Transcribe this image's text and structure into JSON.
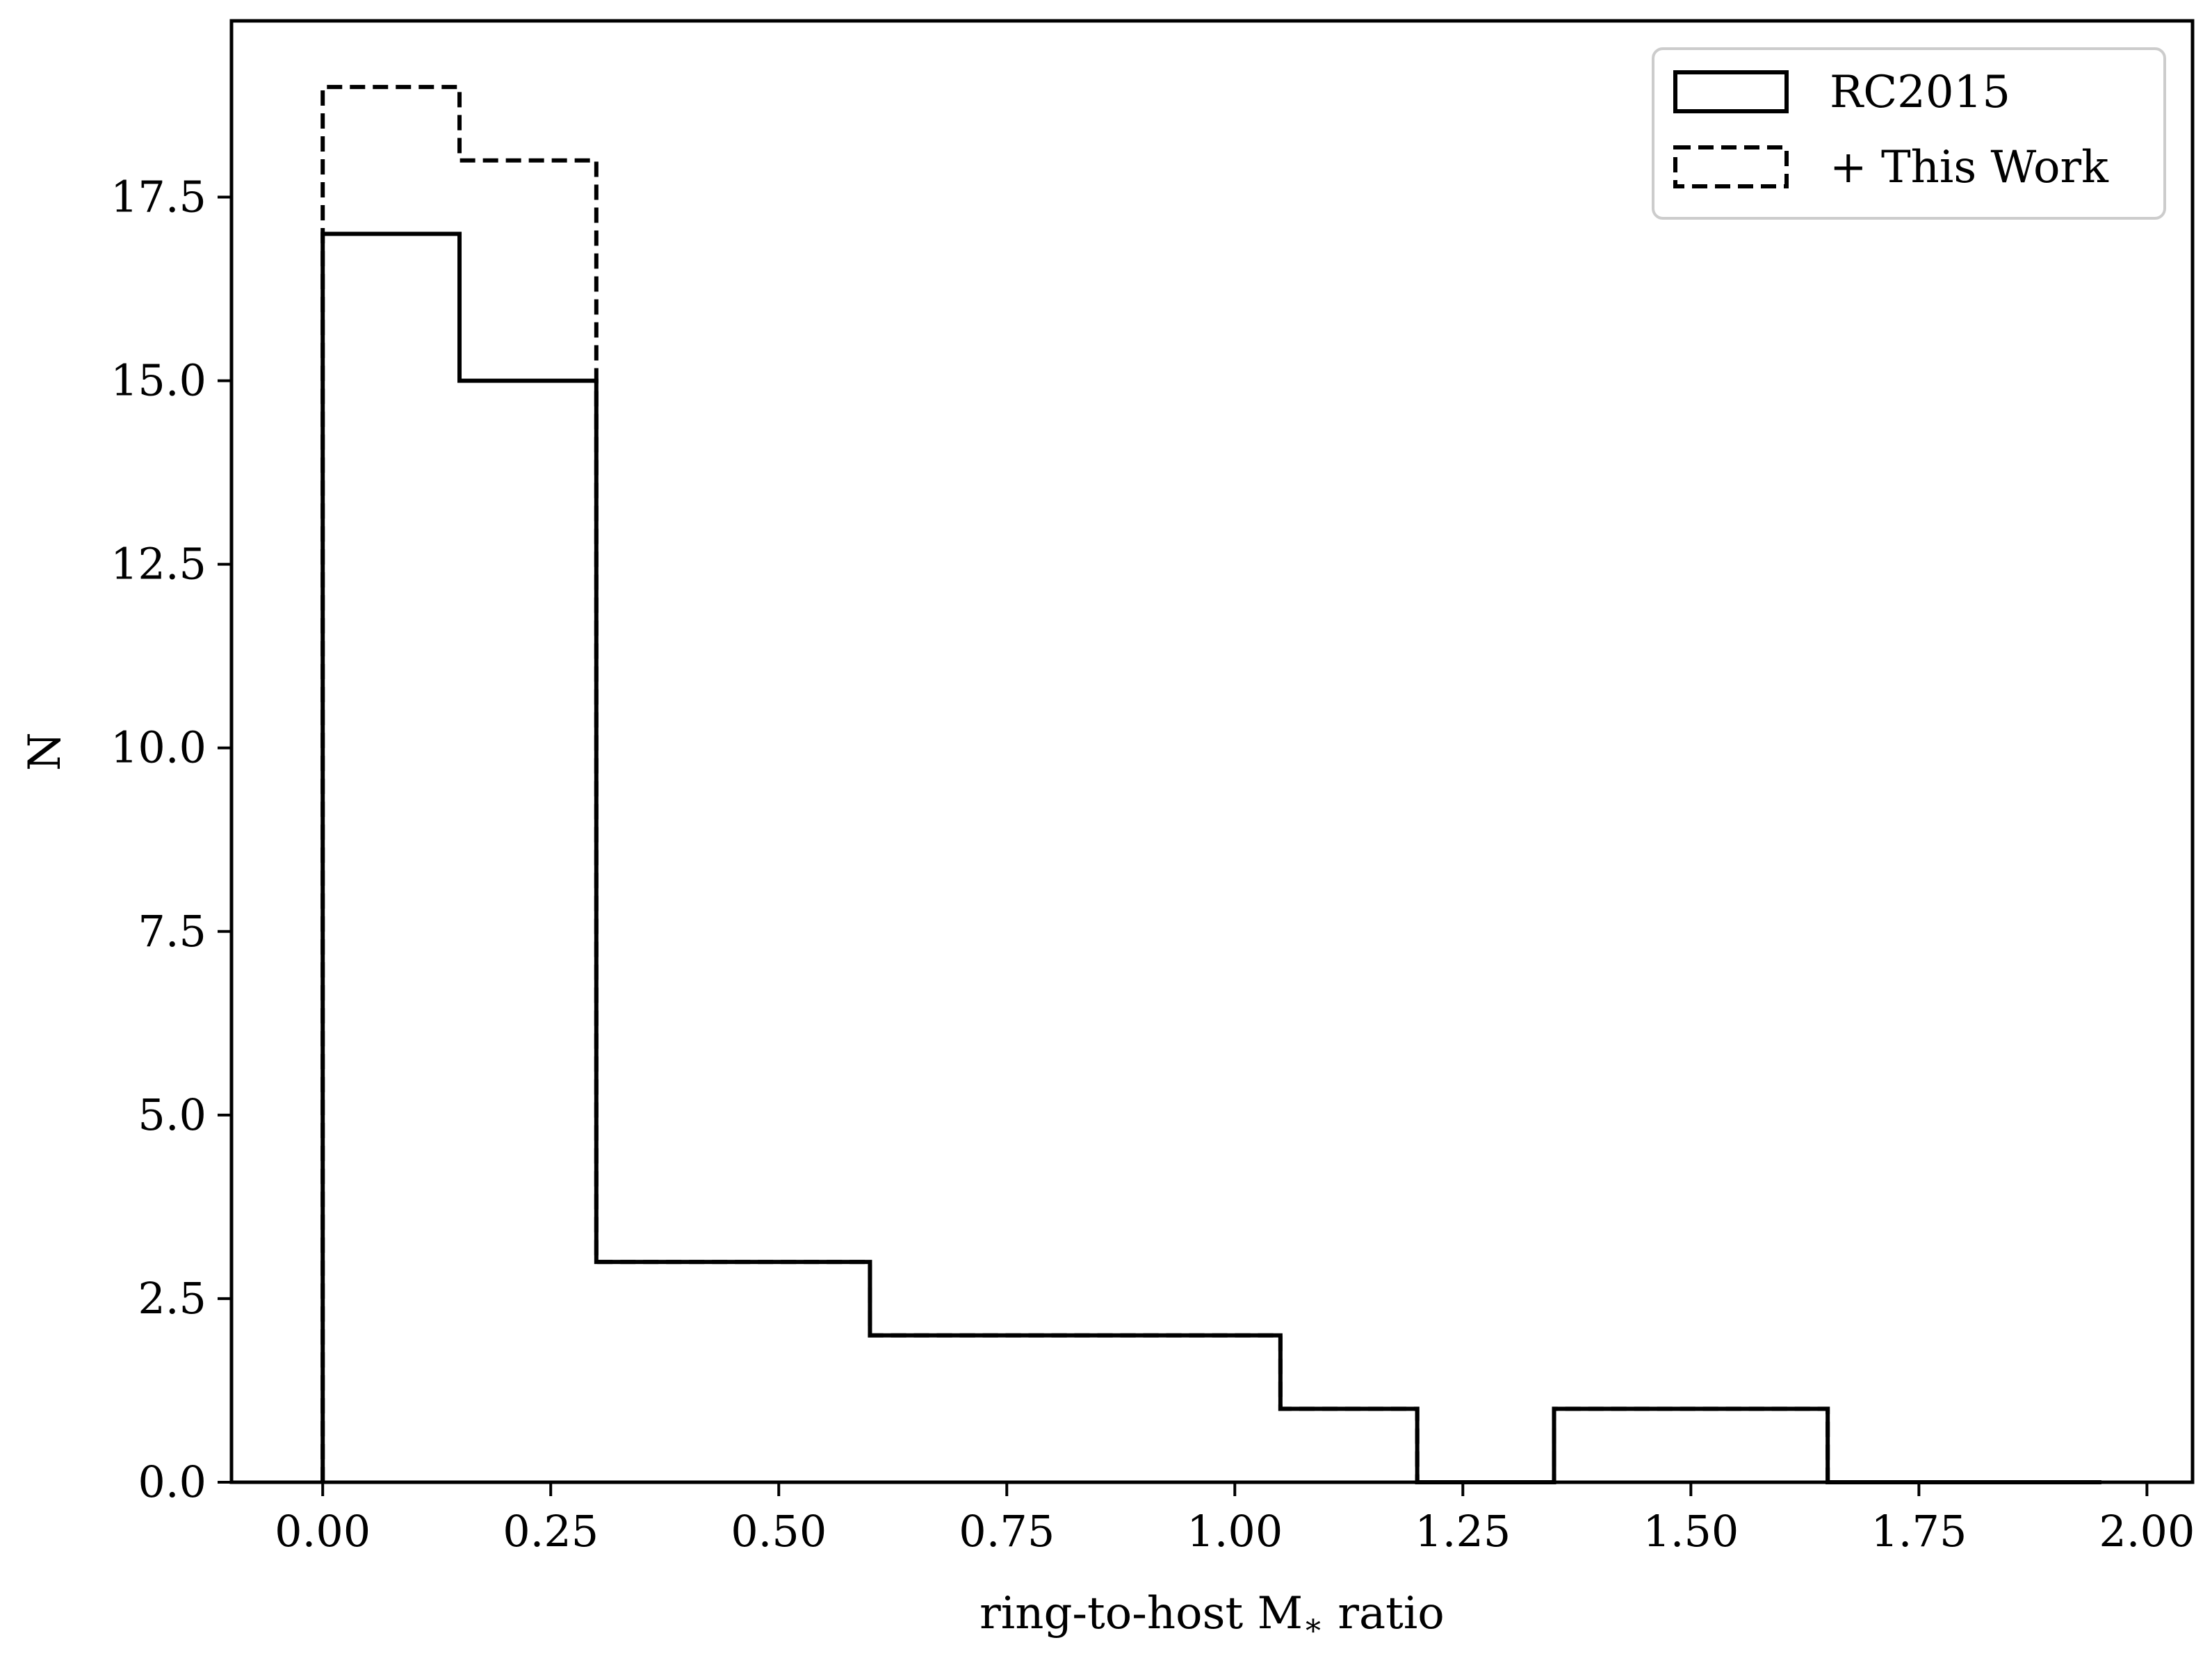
{
  "chart_data": {
    "type": "histogram",
    "xlabel": "ring-to-host M",
    "xlabel_subscript": "∗",
    "xlabel_suffix": " ratio",
    "ylabel": "N",
    "xlim": [
      -0.1,
      2.05
    ],
    "ylim": [
      0,
      19.9
    ],
    "x_ticks": [
      0.0,
      0.25,
      0.5,
      0.75,
      1.0,
      1.25,
      1.5,
      1.75,
      2.0
    ],
    "x_tick_labels": [
      "0.00",
      "0.25",
      "0.50",
      "0.75",
      "1.00",
      "1.25",
      "1.50",
      "1.75",
      "2.00"
    ],
    "y_ticks": [
      0.0,
      2.5,
      5.0,
      7.5,
      10.0,
      12.5,
      15.0,
      17.5
    ],
    "y_tick_labels": [
      "0.0",
      "2.5",
      "5.0",
      "7.5",
      "10.0",
      "12.5",
      "15.0",
      "17.5"
    ],
    "bin_edges": [
      0.0,
      0.15,
      0.3,
      0.45,
      0.6,
      0.75,
      0.9,
      1.05,
      1.2,
      1.35,
      1.5,
      1.65,
      1.8,
      1.95
    ],
    "series": [
      {
        "name": "RC2015",
        "style": "solid",
        "values": [
          17,
          15,
          3,
          3,
          2,
          2,
          2,
          1,
          0,
          1,
          1,
          0,
          0
        ]
      },
      {
        "name": "+ This Work",
        "style": "dashed",
        "values": [
          19,
          18,
          3,
          3,
          2,
          2,
          2,
          1,
          0,
          1,
          1,
          0,
          0
        ]
      }
    ],
    "legend_position": "top-right",
    "grid": false,
    "color": "#000000"
  }
}
